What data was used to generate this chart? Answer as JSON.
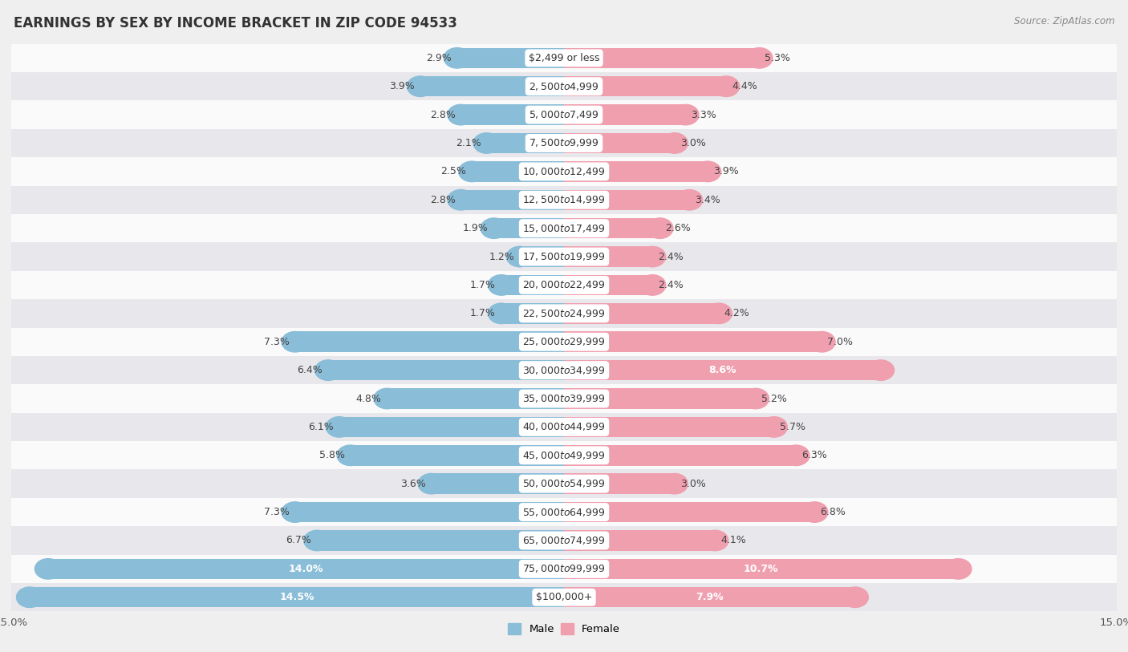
{
  "title": "EARNINGS BY SEX BY INCOME BRACKET IN ZIP CODE 94533",
  "source": "Source: ZipAtlas.com",
  "categories": [
    "$2,499 or less",
    "$2,500 to $4,999",
    "$5,000 to $7,499",
    "$7,500 to $9,999",
    "$10,000 to $12,499",
    "$12,500 to $14,999",
    "$15,000 to $17,499",
    "$17,500 to $19,999",
    "$20,000 to $22,499",
    "$22,500 to $24,999",
    "$25,000 to $29,999",
    "$30,000 to $34,999",
    "$35,000 to $39,999",
    "$40,000 to $44,999",
    "$45,000 to $49,999",
    "$50,000 to $54,999",
    "$55,000 to $64,999",
    "$65,000 to $74,999",
    "$75,000 to $99,999",
    "$100,000+"
  ],
  "male_values": [
    2.9,
    3.9,
    2.8,
    2.1,
    2.5,
    2.8,
    1.9,
    1.2,
    1.7,
    1.7,
    7.3,
    6.4,
    4.8,
    6.1,
    5.8,
    3.6,
    7.3,
    6.7,
    14.0,
    14.5
  ],
  "female_values": [
    5.3,
    4.4,
    3.3,
    3.0,
    3.9,
    3.4,
    2.6,
    2.4,
    2.4,
    4.2,
    7.0,
    8.6,
    5.2,
    5.7,
    6.3,
    3.0,
    6.8,
    4.1,
    10.7,
    7.9
  ],
  "male_color": "#89bdd8",
  "female_color": "#f09faf",
  "male_label_inside_indices": [
    18,
    19
  ],
  "female_label_inside_indices": [
    11,
    18,
    19
  ],
  "axis_max": 15.0,
  "background_color": "#efefef",
  "row_colors": [
    "#fafafa",
    "#e8e8ec"
  ],
  "title_fontsize": 12,
  "label_fontsize": 9,
  "tick_fontsize": 9.5,
  "bar_height": 0.72
}
